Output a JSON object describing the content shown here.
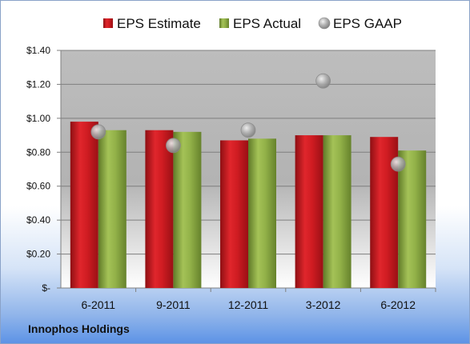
{
  "company_label": "Innophos Holdings",
  "chart_data": {
    "type": "bar",
    "categories": [
      "6-2011",
      "9-2011",
      "12-2011",
      "3-2012",
      "6-2012"
    ],
    "series": [
      {
        "name": "EPS Estimate",
        "kind": "bar",
        "color": "#c8191f",
        "values": [
          0.98,
          0.93,
          0.87,
          0.9,
          0.89
        ]
      },
      {
        "name": "EPS Actual",
        "kind": "bar",
        "color": "#8fae44",
        "values": [
          0.93,
          0.92,
          0.88,
          0.9,
          0.81
        ]
      },
      {
        "name": "EPS GAAP",
        "kind": "scatter",
        "color": "#a9a9a9",
        "values": [
          0.92,
          0.84,
          0.93,
          1.22,
          0.73
        ]
      }
    ],
    "ylim": [
      0,
      1.4
    ],
    "yticks": [
      0,
      0.2,
      0.4,
      0.6,
      0.8,
      1.0,
      1.2,
      1.4
    ],
    "ytick_labels": [
      "$-",
      "$0.20",
      "$0.40",
      "$0.60",
      "$0.80",
      "$1.00",
      "$1.20",
      "$1.40"
    ],
    "grid": true,
    "legend_position": "top"
  }
}
